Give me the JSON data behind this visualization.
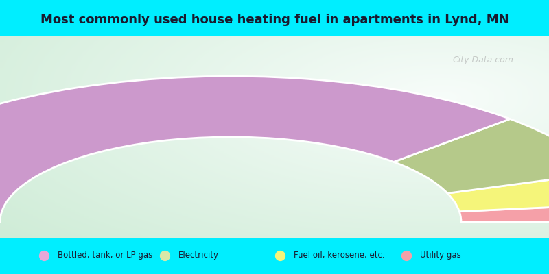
{
  "title": "Most commonly used house heating fuel in apartments in Lynd, MN",
  "title_fontsize": 13,
  "cyan_color": "#00eeff",
  "chart_bg_top_left": "#d8f0d8",
  "chart_bg_center": "#e8f8f0",
  "segments": [
    {
      "label": "Bottled, tank, or LP gas",
      "value": 75,
      "color": "#cc99cc"
    },
    {
      "label": "Electricity",
      "value": 14,
      "color": "#b5c98a"
    },
    {
      "label": "Fuel oil, kerosene, etc.",
      "value": 7,
      "color": "#f5f57a"
    },
    {
      "label": "Utility gas",
      "value": 4,
      "color": "#f5a0a8"
    }
  ],
  "legend_marker_colors": [
    "#e8a8d8",
    "#d8e8a8",
    "#f5f57a",
    "#f5a0a8"
  ],
  "legend_labels": [
    "Bottled, tank, or LP gas",
    "Electricity",
    "Fuel oil, kerosene, etc.",
    "Utility gas"
  ],
  "watermark": "City-Data.com"
}
